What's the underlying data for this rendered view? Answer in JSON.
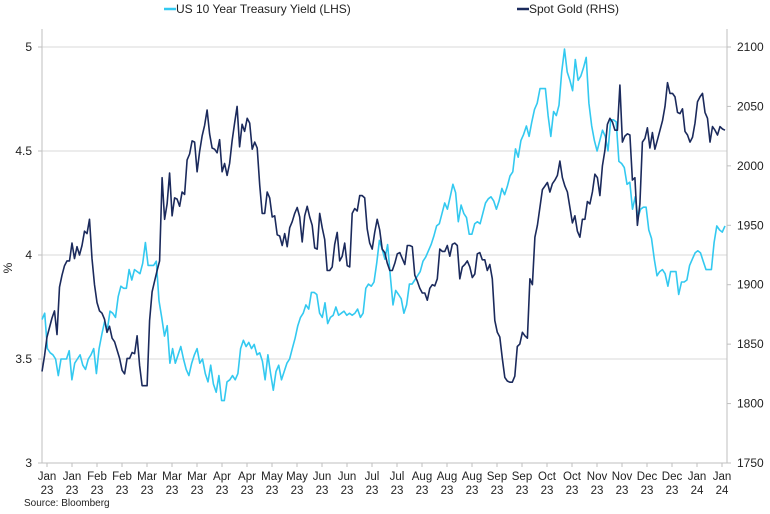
{
  "chart_data": {
    "type": "line",
    "title": "",
    "source": "Source: Bloomberg",
    "ylabel_left": "%",
    "ylabel_right": "",
    "xlabel": "",
    "ylim_left": [
      3,
      5
    ],
    "yticks_left": [
      "3",
      "3.5",
      "4",
      "4.5",
      "5"
    ],
    "ylim_right": [
      1750,
      2100
    ],
    "yticks_right": [
      "1750",
      "1800",
      "1850",
      "1900",
      "1950",
      "2000",
      "2050",
      "2100"
    ],
    "grid": "horizontal",
    "legend_position": "top",
    "x_tick_labels": [
      [
        "Jan",
        "23"
      ],
      [
        "Jan",
        "23"
      ],
      [
        "Feb",
        "23"
      ],
      [
        "Feb",
        "23"
      ],
      [
        "Mar",
        "23"
      ],
      [
        "Mar",
        "23"
      ],
      [
        "Mar",
        "23"
      ],
      [
        "Apr",
        "23"
      ],
      [
        "Apr",
        "23"
      ],
      [
        "May",
        "23"
      ],
      [
        "May",
        "23"
      ],
      [
        "Jun",
        "23"
      ],
      [
        "Jun",
        "23"
      ],
      [
        "Jul",
        "23"
      ],
      [
        "Jul",
        "23"
      ],
      [
        "Aug",
        "23"
      ],
      [
        "Aug",
        "23"
      ],
      [
        "Aug",
        "23"
      ],
      [
        "Sep",
        "23"
      ],
      [
        "Sep",
        "23"
      ],
      [
        "Oct",
        "23"
      ],
      [
        "Oct",
        "23"
      ],
      [
        "Nov",
        "23"
      ],
      [
        "Nov",
        "23"
      ],
      [
        "Dec",
        "23"
      ],
      [
        "Dec",
        "23"
      ],
      [
        "Jan",
        "24"
      ],
      [
        "Jan",
        "24"
      ]
    ],
    "series": [
      {
        "name": "US 10 Year Treasury Yield (LHS)",
        "axis": "left",
        "color": "#33C9F0",
        "values": [
          3.69,
          3.72,
          3.55,
          3.53,
          3.52,
          3.5,
          3.42,
          3.5,
          3.5,
          3.5,
          3.54,
          3.4,
          3.48,
          3.5,
          3.52,
          3.47,
          3.45,
          3.5,
          3.52,
          3.55,
          3.43,
          3.55,
          3.62,
          3.68,
          3.64,
          3.73,
          3.72,
          3.7,
          3.8,
          3.85,
          3.84,
          3.84,
          3.93,
          3.88,
          3.93,
          3.92,
          3.91,
          3.96,
          4.06,
          3.95,
          3.95,
          3.95,
          3.97,
          3.78,
          3.7,
          3.61,
          3.66,
          3.48,
          3.55,
          3.48,
          3.52,
          3.56,
          3.5,
          3.45,
          3.42,
          3.48,
          3.52,
          3.55,
          3.48,
          3.5,
          3.43,
          3.39,
          3.47,
          3.38,
          3.34,
          3.42,
          3.3,
          3.3,
          3.39,
          3.4,
          3.42,
          3.4,
          3.43,
          3.55,
          3.59,
          3.56,
          3.58,
          3.55,
          3.57,
          3.52,
          3.53,
          3.49,
          3.4,
          3.52,
          3.43,
          3.35,
          3.44,
          3.47,
          3.4,
          3.44,
          3.48,
          3.5,
          3.55,
          3.6,
          3.66,
          3.7,
          3.72,
          3.76,
          3.74,
          3.82,
          3.82,
          3.81,
          3.72,
          3.7,
          3.77,
          3.67,
          3.7,
          3.71,
          3.75,
          3.71,
          3.72,
          3.73,
          3.71,
          3.72,
          3.71,
          3.72,
          3.74,
          3.7,
          3.72,
          3.84,
          3.86,
          3.85,
          3.87,
          3.96,
          4.07,
          4.03,
          3.98,
          4.05,
          3.9,
          3.76,
          3.83,
          3.81,
          3.79,
          3.72,
          3.76,
          3.86,
          3.86,
          3.88,
          3.9,
          3.92,
          3.97,
          3.99,
          4.02,
          4.05,
          4.09,
          4.14,
          4.15,
          4.2,
          4.25,
          4.22,
          4.28,
          4.34,
          4.3,
          4.16,
          4.24,
          4.2,
          4.18,
          4.1,
          4.1,
          4.15,
          4.16,
          4.15,
          4.2,
          4.25,
          4.27,
          4.28,
          4.26,
          4.22,
          4.26,
          4.32,
          4.29,
          4.33,
          4.38,
          4.4,
          4.51,
          4.47,
          4.55,
          4.58,
          4.62,
          4.57,
          4.64,
          4.7,
          4.73,
          4.8,
          4.8,
          4.8,
          4.67,
          4.57,
          4.69,
          4.67,
          4.72,
          4.88,
          4.99,
          4.88,
          4.84,
          4.79,
          4.94,
          4.84,
          4.86,
          4.9,
          4.95,
          4.73,
          4.62,
          4.55,
          4.5,
          4.55,
          4.6,
          4.57,
          4.5,
          4.65,
          4.65,
          4.64,
          4.45,
          4.44,
          4.42,
          4.34,
          4.35,
          4.22,
          4.28,
          4.18,
          4.22,
          4.23,
          4.23,
          4.12,
          4.08,
          3.98,
          3.9,
          3.92,
          3.93,
          3.91,
          3.85,
          3.92,
          3.92,
          3.92,
          3.81,
          3.87,
          3.87,
          3.88,
          3.95,
          3.98,
          4.01,
          4.02,
          4.01,
          3.97,
          3.93,
          3.93,
          3.93,
          4.06,
          4.14,
          4.12,
          4.11,
          4.14
        ]
      },
      {
        "name": "Spot Gold (RHS)",
        "axis": "right",
        "color": "#1B2A5C",
        "values": [
          1827,
          1840,
          1856,
          1864,
          1872,
          1878,
          1858,
          1898,
          1908,
          1916,
          1920,
          1920,
          1935,
          1922,
          1932,
          1925,
          1933,
          1945,
          1943,
          1955,
          1922,
          1900,
          1885,
          1878,
          1876,
          1871,
          1860,
          1865,
          1855,
          1852,
          1845,
          1838,
          1828,
          1825,
          1838,
          1838,
          1843,
          1842,
          1857,
          1832,
          1815,
          1815,
          1815,
          1870,
          1894,
          1903,
          1912,
          1920,
          1990,
          1955,
          1968,
          1994,
          1958,
          1973,
          1972,
          1966,
          1978,
          1976,
          2005,
          2010,
          2021,
          2020,
          1995,
          2012,
          2025,
          2034,
          2047,
          2027,
          2015,
          2014,
          2011,
          2022,
          1995,
          2002,
          1992,
          2002,
          2021,
          2036,
          2050,
          2016,
          2035,
          2029,
          2040,
          2036,
          2014,
          2020,
          2015,
          1984,
          1960,
          1960,
          1978,
          1973,
          1957,
          1958,
          1942,
          1941,
          1933,
          1943,
          1932,
          1948,
          1953,
          1960,
          1965,
          1957,
          1936,
          1958,
          1966,
          1957,
          1950,
          1931,
          1930,
          1960,
          1948,
          1938,
          1912,
          1912,
          1915,
          1934,
          1944,
          1920,
          1924,
          1935,
          1916,
          1915,
          1960,
          1964,
          1962,
          1975,
          1975,
          1973,
          1947,
          1935,
          1930,
          1944,
          1955,
          1946,
          1930,
          1927,
          1918,
          1912,
          1912,
          1918,
          1926,
          1927,
          1922,
          1917,
          1933,
          1933,
          1932,
          1908,
          1903,
          1897,
          1893,
          1893,
          1887,
          1897,
          1900,
          1899,
          1905,
          1930,
          1928,
          1928,
          1933,
          1924,
          1934,
          1935,
          1933,
          1905,
          1915,
          1917,
          1920,
          1915,
          1906,
          1909,
          1926,
          1927,
          1921,
          1921,
          1912,
          1917,
          1905,
          1870,
          1860,
          1856,
          1838,
          1822,
          1819,
          1818,
          1818,
          1823,
          1848,
          1850,
          1860,
          1857,
          1855,
          1905,
          1900,
          1940,
          1950,
          1965,
          1980,
          1983,
          1986,
          1978,
          1985,
          1988,
          1992,
          2004,
          1990,
          1983,
          1978,
          1965,
          1952,
          1958,
          1945,
          1940,
          1955,
          1955,
          1970,
          1968,
          1978,
          1993,
          1990,
          1975,
          2000,
          2013,
          2035,
          2040,
          2037,
          2030,
          2030,
          2068,
          2020,
          2025,
          2027,
          2026,
          1988,
          1990,
          1950,
          1968,
          2020,
          2023,
          2032,
          2015,
          2028,
          2014,
          2022,
          2030,
          2038,
          2050,
          2070,
          2061,
          2061,
          2058,
          2045,
          2044,
          2048,
          2029,
          2026,
          2020,
          2024,
          2036,
          2054,
          2058,
          2061,
          2045,
          2040,
          2020,
          2033,
          2030,
          2026,
          2033,
          2031,
          2030
        ]
      }
    ]
  }
}
